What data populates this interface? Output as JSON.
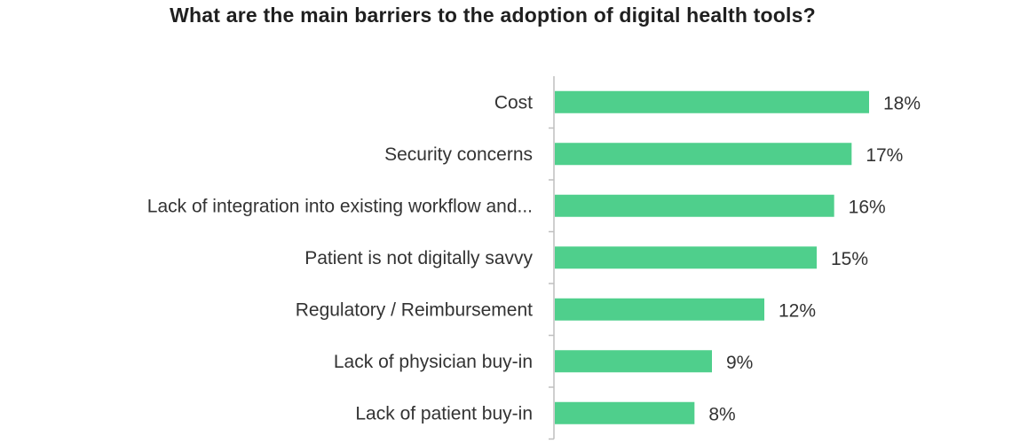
{
  "chart_data": {
    "type": "bar",
    "orientation": "horizontal",
    "title": "What are the main barriers to the adoption of digital health tools?",
    "categories": [
      "Cost",
      "Security concerns",
      "Lack of integration into existing workflow and...",
      "Patient is not digitally savvy",
      "Regulatory / Reimbursement",
      "Lack of physician buy-in",
      "Lack of patient buy-in"
    ],
    "values": [
      18,
      17,
      16,
      15,
      12,
      9,
      8
    ],
    "value_labels": [
      "18%",
      "17%",
      "16%",
      "15%",
      "12%",
      "9%",
      "8%"
    ],
    "unit": "%",
    "bar_color": "#4fcf8c",
    "axis_color": "#bfbfbf",
    "grid": false,
    "legend": "none",
    "xlim": [
      0,
      18
    ]
  }
}
